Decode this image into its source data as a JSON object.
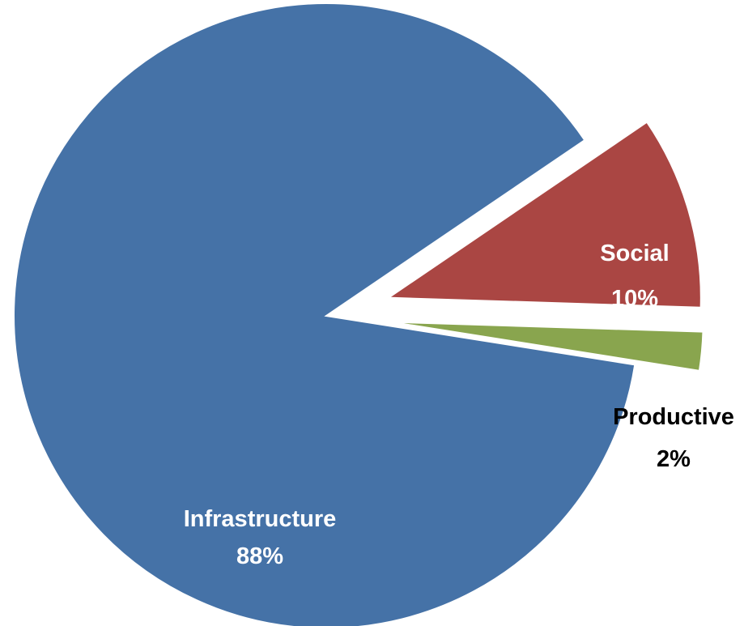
{
  "chart_data": {
    "type": "pie",
    "title": "",
    "slices": [
      {
        "name": "Infrastructure",
        "value": 88,
        "label_pct": "88%",
        "color": "#4572A7",
        "label_color": "#ffffff",
        "exploded": false
      },
      {
        "name": "Social",
        "value": 10,
        "label_pct": "10%",
        "color": "#AA4643",
        "label_color": "#ffffff",
        "exploded": true
      },
      {
        "name": "Productive",
        "value": 2,
        "label_pct": "2%",
        "color": "#89A54E",
        "label_color": "#000000",
        "exploded": true
      }
    ],
    "legend": "none",
    "data_labels": "category-and-percent"
  }
}
